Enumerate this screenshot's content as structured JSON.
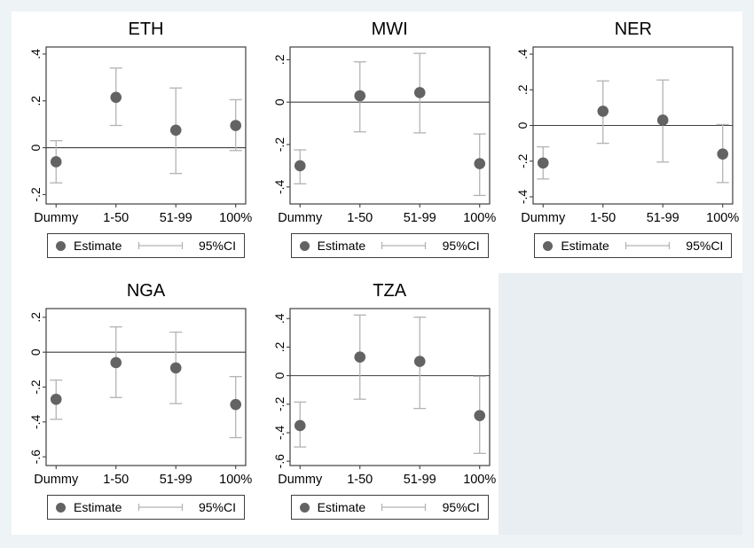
{
  "figure": {
    "legend": {
      "estimate_label": "Estimate",
      "ci_label": "95%CI"
    },
    "colors": {
      "marker": "#636363",
      "ci": "#b3b3b3",
      "axis": "#3f3f3f",
      "panel_background": "#ffffff",
      "page_background": "#eef3f6",
      "empty_cell_background": "#e8eef2"
    }
  },
  "chart_data": [
    {
      "type": "scatter",
      "title": "ETH",
      "categories": [
        "Dummy",
        "1-50",
        "51-99",
        "100%"
      ],
      "points": [
        {
          "category": "Dummy",
          "estimate": -0.06,
          "ci_low": -0.15,
          "ci_high": 0.03
        },
        {
          "category": "1-50",
          "estimate": 0.215,
          "ci_low": 0.095,
          "ci_high": 0.34
        },
        {
          "category": "51-99",
          "estimate": 0.075,
          "ci_low": -0.11,
          "ci_high": 0.255
        },
        {
          "category": "100%",
          "estimate": 0.095,
          "ci_low": -0.012,
          "ci_high": 0.205
        }
      ],
      "yticks": [
        0.4,
        0.2,
        0,
        -0.2
      ],
      "ytick_labels": [
        ".4",
        ".2",
        "0",
        "-.2"
      ],
      "ylim": [
        -0.24,
        0.43
      ],
      "zero_line": true,
      "legend_position": "bottom",
      "grid": false
    },
    {
      "type": "scatter",
      "title": "MWI",
      "categories": [
        "Dummy",
        "1-50",
        "51-99",
        "100%"
      ],
      "points": [
        {
          "category": "Dummy",
          "estimate": -0.3,
          "ci_low": -0.385,
          "ci_high": -0.225
        },
        {
          "category": "1-50",
          "estimate": 0.03,
          "ci_low": -0.14,
          "ci_high": 0.19
        },
        {
          "category": "51-99",
          "estimate": 0.045,
          "ci_low": -0.145,
          "ci_high": 0.23
        },
        {
          "category": "100%",
          "estimate": -0.29,
          "ci_low": -0.44,
          "ci_high": -0.15
        }
      ],
      "yticks": [
        0.2,
        0,
        -0.2,
        -0.4
      ],
      "ytick_labels": [
        ".2",
        "0",
        "-.2",
        "-.4"
      ],
      "ylim": [
        -0.48,
        0.26
      ],
      "zero_line": true,
      "legend_position": "bottom",
      "grid": false
    },
    {
      "type": "scatter",
      "title": "NER",
      "categories": [
        "Dummy",
        "1-50",
        "51-99",
        "100%"
      ],
      "points": [
        {
          "category": "Dummy",
          "estimate": -0.21,
          "ci_low": -0.3,
          "ci_high": -0.12
        },
        {
          "category": "1-50",
          "estimate": 0.08,
          "ci_low": -0.1,
          "ci_high": 0.25
        },
        {
          "category": "51-99",
          "estimate": 0.03,
          "ci_low": -0.205,
          "ci_high": 0.255
        },
        {
          "category": "100%",
          "estimate": -0.16,
          "ci_low": -0.32,
          "ci_high": 0.005
        }
      ],
      "yticks": [
        0.4,
        0.2,
        0,
        -0.2,
        -0.4
      ],
      "ytick_labels": [
        ".4",
        ".2",
        "0",
        "-.2",
        "-.4"
      ],
      "ylim": [
        -0.44,
        0.44
      ],
      "zero_line": true,
      "legend_position": "bottom",
      "grid": false
    },
    {
      "type": "scatter",
      "title": "NGA",
      "categories": [
        "Dummy",
        "1-50",
        "51-99",
        "100%"
      ],
      "points": [
        {
          "category": "Dummy",
          "estimate": -0.27,
          "ci_low": -0.385,
          "ci_high": -0.16
        },
        {
          "category": "1-50",
          "estimate": -0.06,
          "ci_low": -0.26,
          "ci_high": 0.145
        },
        {
          "category": "51-99",
          "estimate": -0.09,
          "ci_low": -0.295,
          "ci_high": 0.115
        },
        {
          "category": "100%",
          "estimate": -0.3,
          "ci_low": -0.49,
          "ci_high": -0.14
        }
      ],
      "yticks": [
        0.2,
        0,
        -0.2,
        -0.4,
        -0.6
      ],
      "ytick_labels": [
        ".2",
        "0",
        "-.2",
        "-.4",
        "-.6"
      ],
      "ylim": [
        -0.65,
        0.25
      ],
      "zero_line": true,
      "legend_position": "bottom",
      "grid": false
    },
    {
      "type": "scatter",
      "title": "TZA",
      "categories": [
        "Dummy",
        "1-50",
        "51-99",
        "100%"
      ],
      "points": [
        {
          "category": "Dummy",
          "estimate": -0.35,
          "ci_low": -0.5,
          "ci_high": -0.185
        },
        {
          "category": "1-50",
          "estimate": 0.13,
          "ci_low": -0.165,
          "ci_high": 0.425
        },
        {
          "category": "51-99",
          "estimate": 0.1,
          "ci_low": -0.23,
          "ci_high": 0.41
        },
        {
          "category": "100%",
          "estimate": -0.28,
          "ci_low": -0.545,
          "ci_high": -0.005
        }
      ],
      "yticks": [
        0.4,
        0.2,
        0,
        -0.2,
        -0.4,
        -0.6
      ],
      "ytick_labels": [
        ".4",
        ".2",
        "0",
        "-.2",
        "-.4",
        "-.6"
      ],
      "ylim": [
        -0.63,
        0.47
      ],
      "zero_line": true,
      "legend_position": "bottom",
      "grid": false
    }
  ]
}
